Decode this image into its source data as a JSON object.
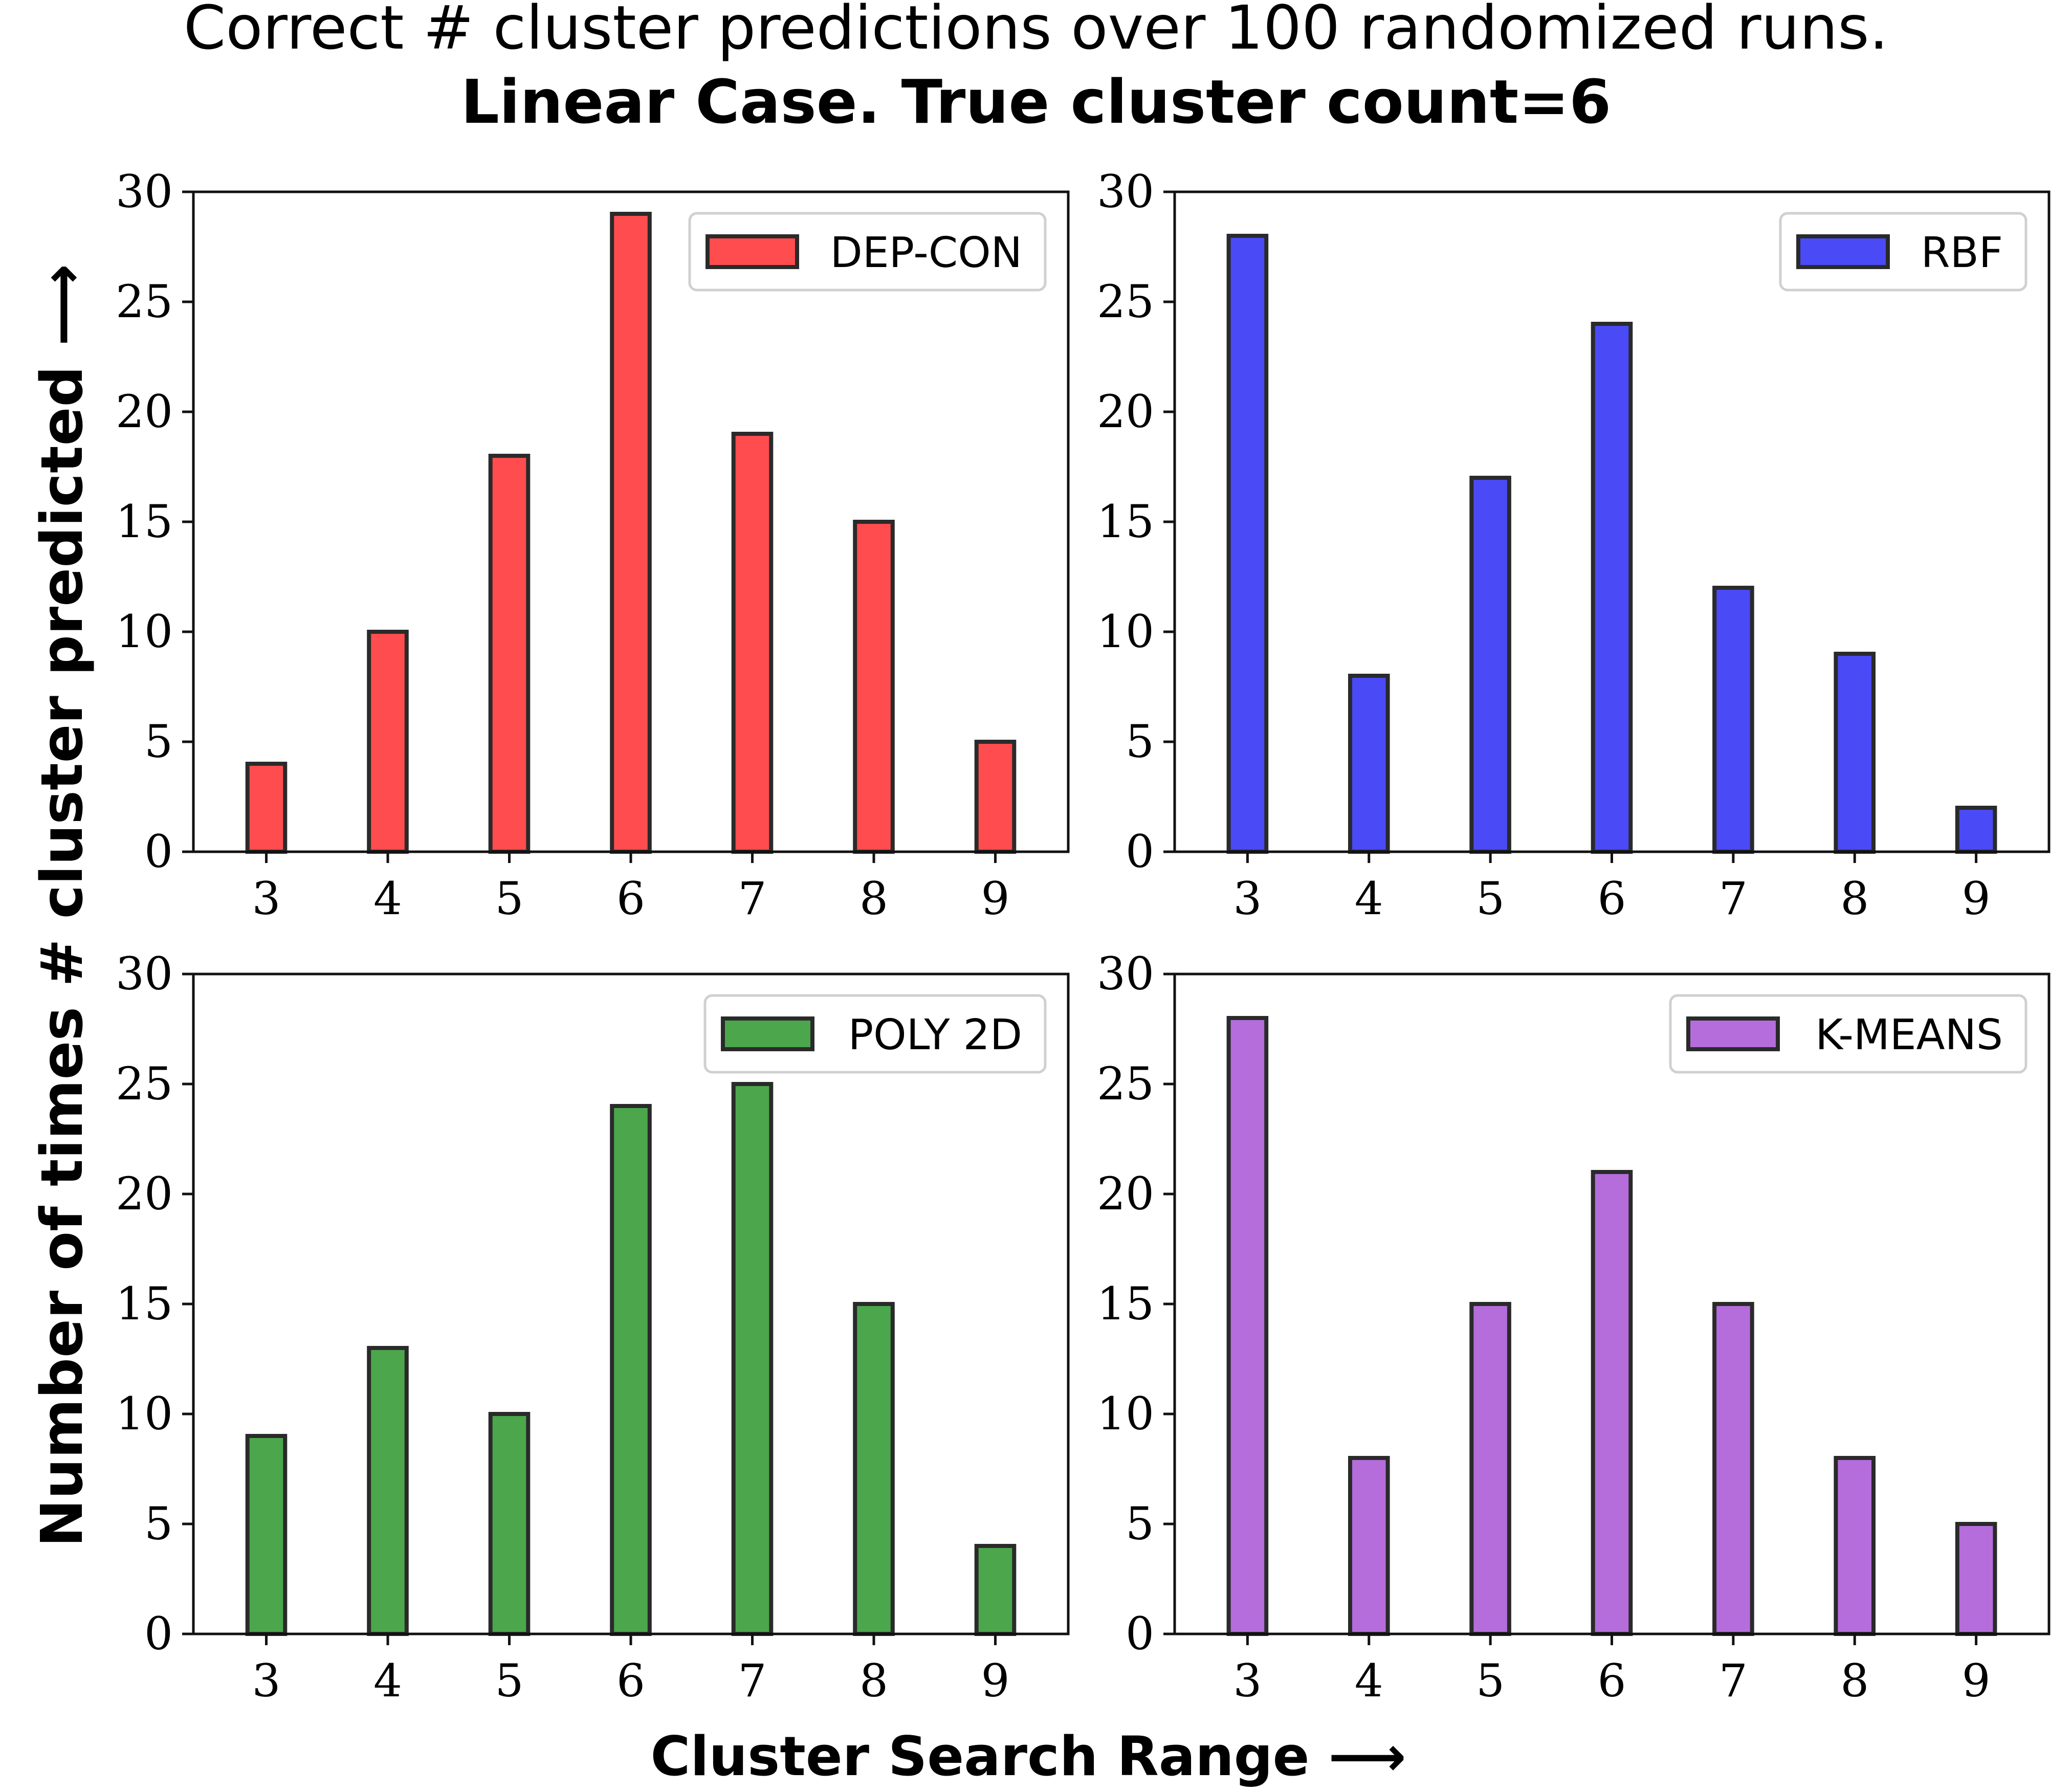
{
  "figure": {
    "title_line1": "Correct # cluster predictions over 100 randomized runs.",
    "title_line2": "Linear Case.  True cluster count=6",
    "ylabel": "Number of times # cluster predicted ⟶",
    "xlabel": "Cluster Search Range ⟶"
  },
  "chart_data": [
    {
      "type": "bar",
      "title": "",
      "legend": "DEP-CON",
      "legend_position": "top-right",
      "color": "#ff4c4f",
      "categories": [
        "3",
        "4",
        "5",
        "6",
        "7",
        "8",
        "9"
      ],
      "values": [
        4,
        10,
        18,
        29,
        19,
        15,
        5
      ],
      "xlabel": "Cluster Search Range",
      "ylabel": "Number of times # cluster predicted",
      "ylim": [
        0,
        30
      ],
      "yticks": [
        "0",
        "5",
        "10",
        "15",
        "20",
        "25",
        "30"
      ],
      "grid": false
    },
    {
      "type": "bar",
      "title": "",
      "legend": "RBF",
      "legend_position": "top-right",
      "color": "#4a4af7",
      "categories": [
        "3",
        "4",
        "5",
        "6",
        "7",
        "8",
        "9"
      ],
      "values": [
        28,
        8,
        17,
        24,
        12,
        9,
        2
      ],
      "xlabel": "Cluster Search Range",
      "ylabel": "Number of times # cluster predicted",
      "ylim": [
        0,
        30
      ],
      "yticks": [
        "0",
        "5",
        "10",
        "15",
        "20",
        "25",
        "30"
      ],
      "grid": false
    },
    {
      "type": "bar",
      "title": "",
      "legend": "POLY 2D",
      "legend_position": "top-right",
      "color": "#4ca64c",
      "categories": [
        "3",
        "4",
        "5",
        "6",
        "7",
        "8",
        "9"
      ],
      "values": [
        9,
        13,
        10,
        24,
        25,
        15,
        4
      ],
      "xlabel": "Cluster Search Range",
      "ylabel": "Number of times # cluster predicted",
      "ylim": [
        0,
        30
      ],
      "yticks": [
        "0",
        "5",
        "10",
        "15",
        "20",
        "25",
        "30"
      ],
      "grid": false
    },
    {
      "type": "bar",
      "title": "",
      "legend": "K-MEANS",
      "legend_position": "top-right",
      "color": "#b46ddb",
      "categories": [
        "3",
        "4",
        "5",
        "6",
        "7",
        "8",
        "9"
      ],
      "values": [
        28,
        8,
        15,
        21,
        15,
        8,
        5
      ],
      "xlabel": "Cluster Search Range",
      "ylabel": "Number of times # cluster predicted",
      "ylim": [
        0,
        30
      ],
      "yticks": [
        "0",
        "5",
        "10",
        "15",
        "20",
        "25",
        "30"
      ],
      "grid": false
    }
  ]
}
